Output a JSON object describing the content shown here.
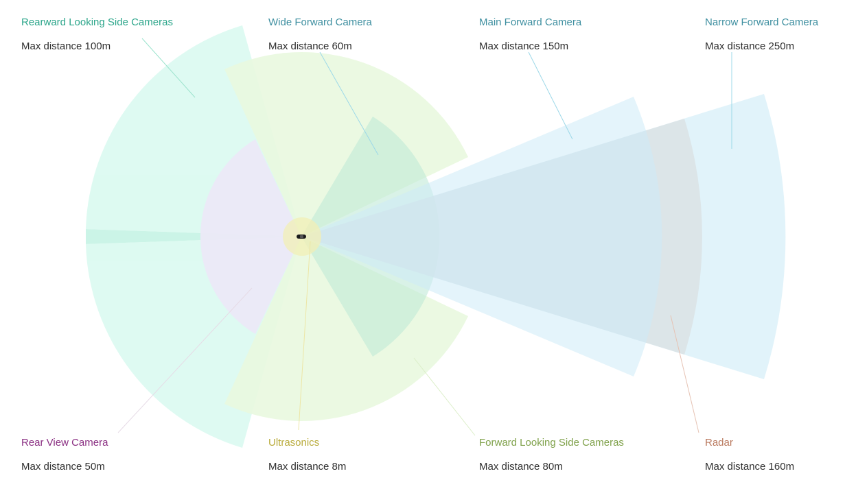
{
  "sensors": [
    {
      "id": "rearward-side",
      "title": "Rearward Looking Side Cameras",
      "distance": "Max distance 100m",
      "color": "#2ba58a"
    },
    {
      "id": "wide-forward",
      "title": "Wide Forward Camera",
      "distance": "Max distance 60m",
      "color": "#3e8fa0"
    },
    {
      "id": "main-forward",
      "title": "Main Forward Camera",
      "distance": "Max distance 150m",
      "color": "#3e8fa0"
    },
    {
      "id": "narrow-forward",
      "title": "Narrow Forward Camera",
      "distance": "Max distance 250m",
      "color": "#3e8fa0"
    },
    {
      "id": "rear-view",
      "title": "Rear View Camera",
      "distance": "Max distance 50m",
      "color": "#8a2f82"
    },
    {
      "id": "ultrasonics",
      "title": "Ultrasonics",
      "distance": "Max distance 8m",
      "color": "#b9ab3a"
    },
    {
      "id": "fwd-side",
      "title": "Forward Looking Side Cameras",
      "distance": "Max distance 80m",
      "color": "#7fa14a"
    },
    {
      "id": "radar",
      "title": "Radar",
      "distance": "Max distance 160m",
      "color": "#b9785d"
    }
  ],
  "colors": {
    "rearward_fill": "#dcfaf1",
    "rear_view_fill": "#ebe9f7",
    "wide_fill": "#bfe9d7",
    "fwd_side_fill": "#e9f8df",
    "camera_blue": "#cdebf7",
    "radar_fill": "#e4e4e4",
    "ultrasonic_fill": "#f2efb5",
    "car": "#1a1a1a"
  }
}
